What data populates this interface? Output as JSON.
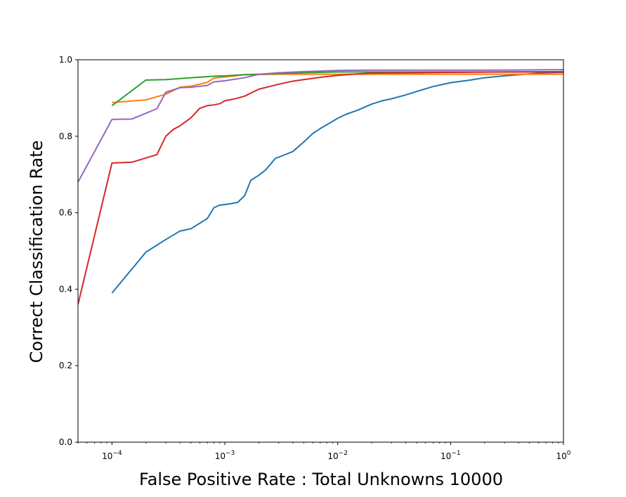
{
  "chart_data": {
    "type": "line",
    "title": "",
    "xlabel": "False Positive Rate : Total Unknowns 10000",
    "ylabel": "Correct Classification Rate",
    "x_scale": "log",
    "xlim": [
      5e-05,
      1
    ],
    "ylim": [
      0.0,
      1.0
    ],
    "grid": false,
    "legend": "none",
    "x_ticks": [
      {
        "value": 0.0001,
        "base": "10",
        "exp": "−4"
      },
      {
        "value": 0.001,
        "base": "10",
        "exp": "−3"
      },
      {
        "value": 0.01,
        "base": "10",
        "exp": "−2"
      },
      {
        "value": 0.1,
        "base": "10",
        "exp": "−1"
      },
      {
        "value": 1,
        "base": "10",
        "exp": "0"
      }
    ],
    "y_ticks": [
      {
        "value": 0.0,
        "label": "0.0"
      },
      {
        "value": 0.2,
        "label": "0.2"
      },
      {
        "value": 0.4,
        "label": "0.4"
      },
      {
        "value": 0.6,
        "label": "0.6"
      },
      {
        "value": 0.8,
        "label": "0.8"
      },
      {
        "value": 1.0,
        "label": "1.0"
      }
    ],
    "series": [
      {
        "color": "#1f77b4",
        "x": [
          0.0001,
          0.0002,
          0.0003,
          0.0004,
          0.0005,
          0.0007,
          0.0008,
          0.0009,
          0.0011,
          0.0013,
          0.0015,
          0.0017,
          0.002,
          0.0023,
          0.0028,
          0.0033,
          0.004,
          0.005,
          0.006,
          0.007,
          0.008,
          0.01,
          0.012,
          0.015,
          0.02,
          0.025,
          0.03,
          0.04,
          0.05,
          0.07,
          0.1,
          0.15,
          0.2,
          0.3,
          0.5,
          0.7,
          1.0
        ],
        "y": [
          0.39,
          0.497,
          0.53,
          0.552,
          0.558,
          0.585,
          0.613,
          0.62,
          0.623,
          0.627,
          0.645,
          0.685,
          0.698,
          0.712,
          0.742,
          0.75,
          0.76,
          0.785,
          0.807,
          0.82,
          0.83,
          0.847,
          0.858,
          0.868,
          0.884,
          0.893,
          0.898,
          0.908,
          0.917,
          0.93,
          0.94,
          0.947,
          0.953,
          0.958,
          0.963,
          0.966,
          0.967
        ]
      },
      {
        "color": "#ff7f0e",
        "x": [
          0.0001,
          0.0002,
          0.0003,
          0.0004,
          0.0005,
          0.0007,
          0.0008,
          0.001,
          0.0015,
          0.003,
          0.005,
          0.01,
          0.02,
          0.05,
          0.1,
          1.0
        ],
        "y": [
          0.888,
          0.895,
          0.91,
          0.928,
          0.931,
          0.941,
          0.952,
          0.955,
          0.961,
          0.962,
          0.962,
          0.962,
          0.962,
          0.962,
          0.962,
          0.962
        ]
      },
      {
        "color": "#2ca02c",
        "x": [
          0.0001,
          0.0002,
          0.0003,
          0.0005,
          0.0008,
          0.001,
          0.0015,
          0.003,
          0.005,
          0.01,
          0.02,
          0.05,
          0.1,
          0.3,
          1.0
        ],
        "y": [
          0.88,
          0.947,
          0.948,
          0.953,
          0.957,
          0.958,
          0.961,
          0.964,
          0.966,
          0.968,
          0.968,
          0.968,
          0.968,
          0.968,
          0.969
        ]
      },
      {
        "color": "#d62728",
        "x": [
          5e-05,
          0.0001,
          0.00015,
          0.00025,
          0.0003,
          0.00035,
          0.0004,
          0.0005,
          0.0006,
          0.0007,
          0.0008,
          0.0009,
          0.001,
          0.0012,
          0.0015,
          0.002,
          0.003,
          0.004,
          0.005,
          0.007,
          0.01,
          0.015,
          0.02,
          0.05,
          0.1,
          0.3,
          1.0
        ],
        "y": [
          0.36,
          0.73,
          0.732,
          0.752,
          0.8,
          0.818,
          0.827,
          0.848,
          0.873,
          0.88,
          0.882,
          0.885,
          0.893,
          0.897,
          0.905,
          0.923,
          0.936,
          0.944,
          0.948,
          0.954,
          0.959,
          0.963,
          0.965,
          0.966,
          0.967,
          0.968,
          0.968
        ]
      },
      {
        "color": "#9467bd",
        "x": [
          5e-05,
          0.0001,
          0.00015,
          0.00025,
          0.0003,
          0.0004,
          0.0005,
          0.0007,
          0.0008,
          0.001,
          0.0015,
          0.002,
          0.003,
          0.005,
          0.01,
          0.02,
          0.05,
          0.1,
          0.3,
          1.0
        ],
        "y": [
          0.68,
          0.844,
          0.845,
          0.872,
          0.915,
          0.927,
          0.928,
          0.933,
          0.942,
          0.945,
          0.953,
          0.962,
          0.966,
          0.969,
          0.972,
          0.973,
          0.973,
          0.973,
          0.973,
          0.974
        ]
      }
    ]
  }
}
